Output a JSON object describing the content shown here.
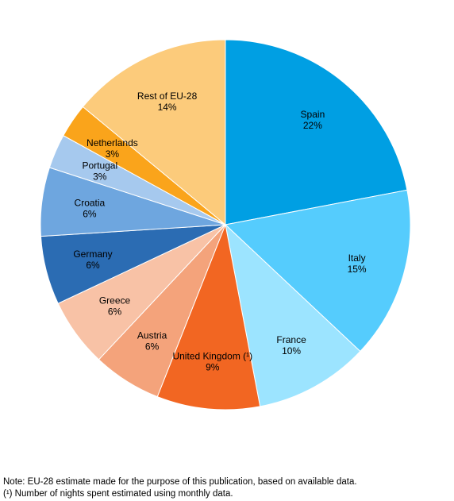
{
  "chart_data": {
    "type": "pie",
    "title": "",
    "start_angle_deg": 0,
    "direction": "clockwise",
    "legend": "none",
    "slices": [
      {
        "label": "Spain",
        "value": 22,
        "value_label": "22%",
        "color": "#009fe3"
      },
      {
        "label": "Italy",
        "value": 15,
        "value_label": "15%",
        "color": "#55ccfd"
      },
      {
        "label": "France",
        "value": 10,
        "value_label": "10%",
        "color": "#9ce4ff"
      },
      {
        "label": "United Kingdom (¹)",
        "value": 9,
        "value_label": "9%",
        "color": "#f26622"
      },
      {
        "label": "Austria",
        "value": 6,
        "value_label": "6%",
        "color": "#f4a37b"
      },
      {
        "label": "Greece",
        "value": 6,
        "value_label": "6%",
        "color": "#f8c2a6"
      },
      {
        "label": "Germany",
        "value": 6,
        "value_label": "6%",
        "color": "#2b6cb3"
      },
      {
        "label": "Croatia",
        "value": 6,
        "value_label": "6%",
        "color": "#6ea6df"
      },
      {
        "label": "Portugal",
        "value": 3,
        "value_label": "3%",
        "color": "#a6c9ee"
      },
      {
        "label": "Netherlands",
        "value": 3,
        "value_label": "3%",
        "color": "#faa41b"
      },
      {
        "label": "Rest of EU-28",
        "value": 14,
        "value_label": "14%",
        "color": "#fccb7b"
      }
    ]
  },
  "notes": [
    "Note: EU-28 estimate made for the purpose of this publication, based on available data.",
    "(¹) Number of nights spent estimated using monthly data."
  ]
}
